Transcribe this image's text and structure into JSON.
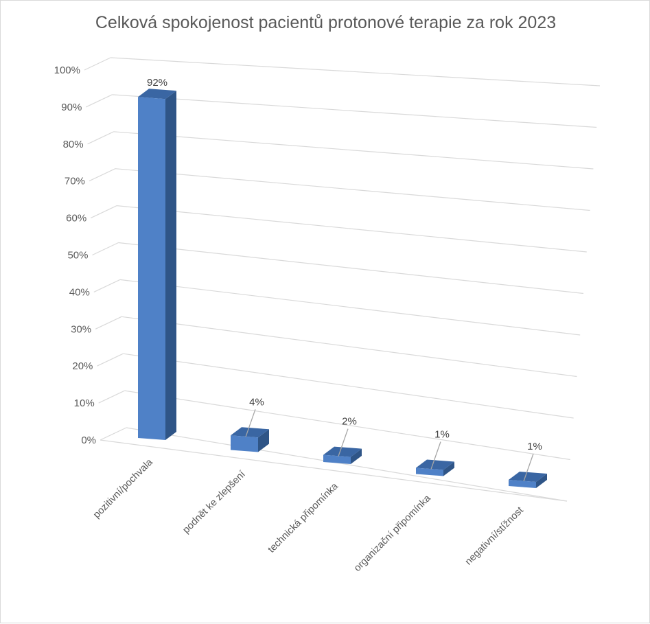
{
  "chart_data": {
    "type": "bar",
    "title": "Celková spokojenost pacientů protonové terapie za rok 2023",
    "categories": [
      "pozitivní/pochvala",
      "podnět ke zlepšení",
      "technická připomínka",
      "organizační připomínka",
      "negativní/stížnost"
    ],
    "values": [
      92,
      4,
      2,
      1,
      1
    ],
    "data_labels": [
      "92%",
      "4%",
      "2%",
      "1%",
      "1%"
    ],
    "yticks": [
      "0%",
      "10%",
      "20%",
      "30%",
      "40%",
      "50%",
      "60%",
      "70%",
      "80%",
      "90%",
      "100%"
    ],
    "ylim": [
      0,
      100
    ],
    "grid": true,
    "legend": "none",
    "colors": {
      "bar_front": "#4f81c7",
      "bar_side": "#2f5587",
      "bar_top": "#3a66a3",
      "grid": "#d9d9d9",
      "text": "#595959"
    }
  }
}
